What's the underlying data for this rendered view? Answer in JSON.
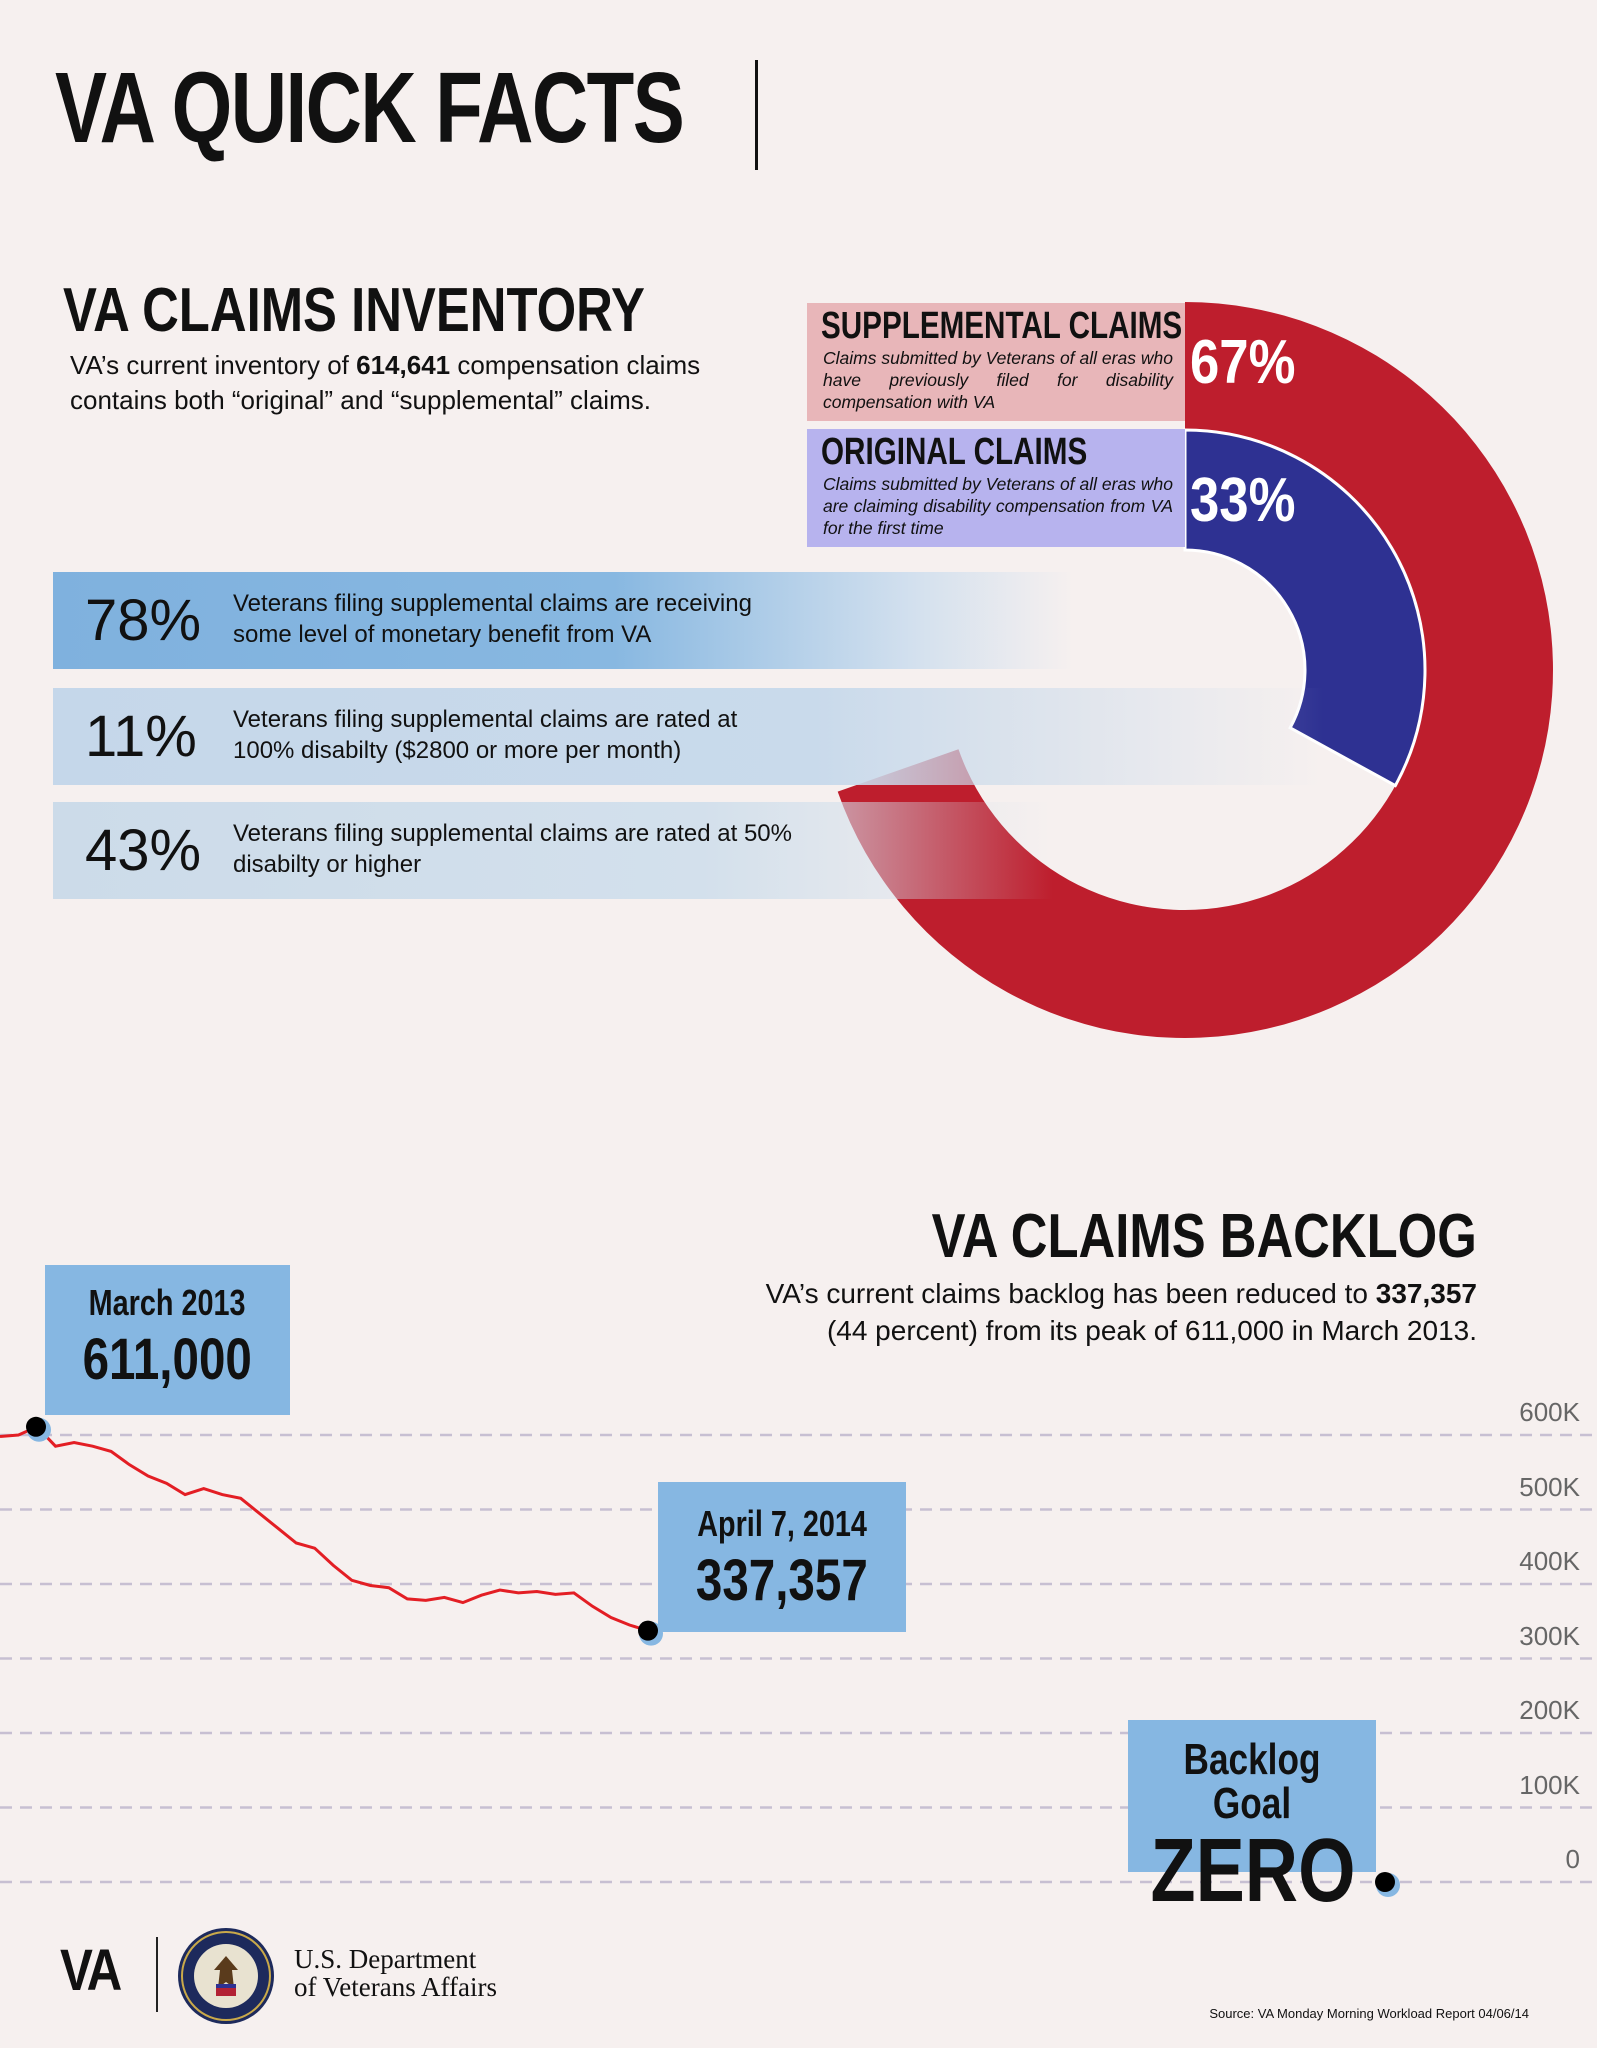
{
  "header": {
    "title": "VA QUICK FACTS"
  },
  "inventory": {
    "title": "VA CLAIMS INVENTORY",
    "desc_pre": "VA’s current inventory of ",
    "desc_bold": "614,641",
    "desc_post": " compensation claims contains both “original” and “supplemental” claims.",
    "supplemental": {
      "heading": "SUPPLEMENTAL CLAIMS",
      "description": "Claims submitted by Veterans of all eras who have previously filed for disability compensation with VA",
      "percent": "67%"
    },
    "original": {
      "heading": "ORIGINAL CLAIMS",
      "description": "Claims submitted by Veterans of all eras who are claiming disability compensation from VA for the first time",
      "percent": "33%"
    },
    "stats": [
      {
        "value": "78%",
        "text": "Veterans filing supplemental claims are receiving some level of monetary benefit from VA"
      },
      {
        "value": "11%",
        "text": "Veterans filing supplemental claims are rated at 100% disabilty ($2800 or more per month)"
      },
      {
        "value": "43%",
        "text": "Veterans filing supplemental claims are rated at 50% disabilty or higher"
      }
    ]
  },
  "backlog": {
    "title": "VA CLAIMS BACKLOG",
    "desc_pre": "VA’s current claims backlog has been reduced to ",
    "desc_bold": "337,357",
    "desc_post": "(44 percent) from its peak of 611,000 in March 2013.",
    "peak_callout": {
      "date": "March 2013",
      "value": "611,000"
    },
    "current_callout": {
      "date": "April 7, 2014",
      "value": "337,357"
    },
    "goal_callout": {
      "label": "Backlog Goal",
      "value": "ZERO"
    }
  },
  "chart_data": [
    {
      "type": "pie",
      "categories": [
        "SUPPLEMENTAL CLAIMS",
        "ORIGINAL CLAIMS"
      ],
      "values": [
        67,
        33
      ],
      "colors": [
        "#be1e2d",
        "#2e3192"
      ]
    },
    {
      "type": "line",
      "y_tick_labels": [
        "600K",
        "500K",
        "400K",
        "300K",
        "200K",
        "100K",
        "0"
      ],
      "y_ticks": [
        600000,
        500000,
        400000,
        300000,
        200000,
        100000,
        0
      ],
      "ylim": [
        0,
        600000
      ],
      "grid": true,
      "series": [
        {
          "color": "#e31e24",
          "values": [
            598000,
            600000,
            611000,
            585000,
            590000,
            585000,
            578000,
            560000,
            545000,
            535000,
            520000,
            528000,
            520000,
            515000,
            495000,
            475000,
            455000,
            448000,
            425000,
            405000,
            398000,
            395000,
            380000,
            378000,
            382000,
            375000,
            385000,
            392000,
            388000,
            390000,
            386000,
            388000,
            370000,
            355000,
            345000,
            337357
          ]
        }
      ],
      "markers": [
        {
          "label": "March 2013",
          "value": 611000
        },
        {
          "label": "April 7, 2014",
          "value": 337357
        },
        {
          "label": "Backlog Goal",
          "value": 0
        }
      ],
      "line_color": "#e31e24",
      "grid_color": "#c7bfd2"
    }
  ],
  "footer": {
    "logo": "VA",
    "dept_line1": "U.S. Department",
    "dept_line2": "of Veterans Affairs",
    "seal_icon": "va-seal-icon",
    "source": "Source: VA Monday Morning Workload Report 04/06/14"
  }
}
